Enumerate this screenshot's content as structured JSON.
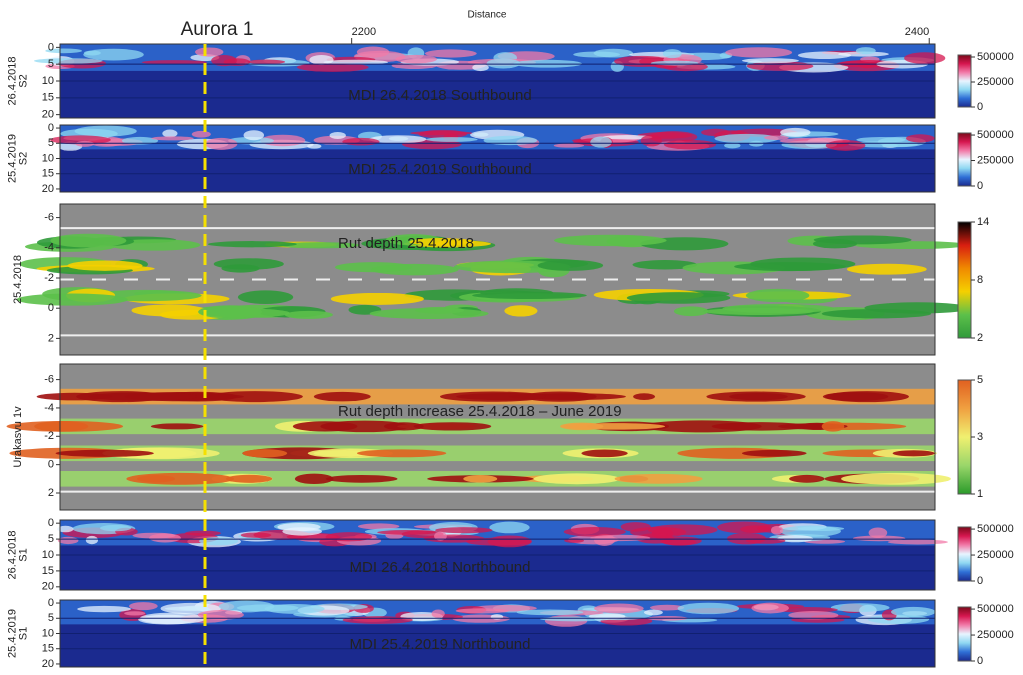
{
  "annotation": "Aurora 1",
  "chart_data": [
    {
      "type": "heatmap",
      "style": "mdi",
      "title": "MDI 26.4.2018 Southbound",
      "ylabel": [
        "26.4.2018",
        "S2"
      ],
      "xlabel": "Distance",
      "xlim": [
        2099,
        2402
      ],
      "xticks": [
        2200,
        2400
      ],
      "ylim": [
        -1,
        21
      ],
      "yticks": [
        0,
        5,
        10,
        15,
        20
      ],
      "colorbar_lim": [
        0,
        520000
      ],
      "colorbar_ticks": [
        500000,
        250000,
        0
      ],
      "colormap": [
        "#1b2a8f",
        "#2f6fd6",
        "#8fd8f2",
        "#e8f4ff",
        "#f27aa8",
        "#d6164f",
        "#7a0a1a"
      ]
    },
    {
      "type": "heatmap",
      "style": "mdi",
      "title": "MDI 25.4.2019 Southbound",
      "ylabel": [
        "25.4.2019",
        "S2"
      ],
      "ylim": [
        -1,
        21
      ],
      "yticks": [
        0,
        5,
        10,
        15,
        20
      ],
      "colorbar_lim": [
        0,
        520000
      ],
      "colorbar_ticks": [
        500000,
        250000,
        0
      ],
      "colormap": [
        "#1b2a8f",
        "#2f6fd6",
        "#8fd8f2",
        "#e8f4ff",
        "#f27aa8",
        "#d6164f",
        "#7a0a1a"
      ]
    },
    {
      "type": "heatmap",
      "style": "rut",
      "title": "Rut depth 25.4.2018",
      "ylabel": [
        "25.4.2018"
      ],
      "ylim": [
        -6.9,
        3.1
      ],
      "yticks": [
        -6,
        -4,
        -2,
        0,
        2
      ],
      "colorbar_lim": [
        2,
        14
      ],
      "colorbar_ticks": [
        14,
        8,
        2
      ],
      "colormap": [
        "#2f9a3a",
        "#5cc04a",
        "#f5d000",
        "#f08a00",
        "#d81e10",
        "#000000"
      ]
    },
    {
      "type": "heatmap",
      "style": "rutinc",
      "title": "Rut depth increase 25.4.2018 – June 2019",
      "ylabel": [
        "Urakasvu 1v"
      ],
      "ylim": [
        -7.1,
        3.2
      ],
      "yticks": [
        -6,
        -4,
        -2,
        0,
        2
      ],
      "colorbar_lim": [
        1,
        5
      ],
      "colorbar_ticks": [
        5,
        3,
        1
      ],
      "colormap": [
        "#2a9a2a",
        "#9ad66a",
        "#f0f070",
        "#f0a040",
        "#e06020"
      ]
    },
    {
      "type": "heatmap",
      "style": "mdi",
      "title": "MDI 26.4.2018 Northbound",
      "ylabel": [
        "26.4.2018",
        "S1"
      ],
      "ylim": [
        -1,
        21
      ],
      "yticks": [
        0,
        5,
        10,
        15,
        20
      ],
      "colorbar_lim": [
        0,
        520000
      ],
      "colorbar_ticks": [
        500000,
        250000,
        0
      ],
      "colormap": [
        "#1b2a8f",
        "#2f6fd6",
        "#8fd8f2",
        "#e8f4ff",
        "#f27aa8",
        "#d6164f",
        "#7a0a1a"
      ]
    },
    {
      "type": "heatmap",
      "style": "mdi",
      "title": "MDI 25.4.2019 Northbound",
      "ylabel": [
        "25.4.2019",
        "S1"
      ],
      "ylim": [
        -1,
        21
      ],
      "yticks": [
        0,
        5,
        10,
        15,
        20
      ],
      "colorbar_lim": [
        0,
        520000
      ],
      "colorbar_ticks": [
        500000,
        250000,
        0
      ],
      "colormap": [
        "#1b2a8f",
        "#2f6fd6",
        "#8fd8f2",
        "#e8f4ff",
        "#f27aa8",
        "#d6164f",
        "#7a0a1a"
      ]
    }
  ]
}
